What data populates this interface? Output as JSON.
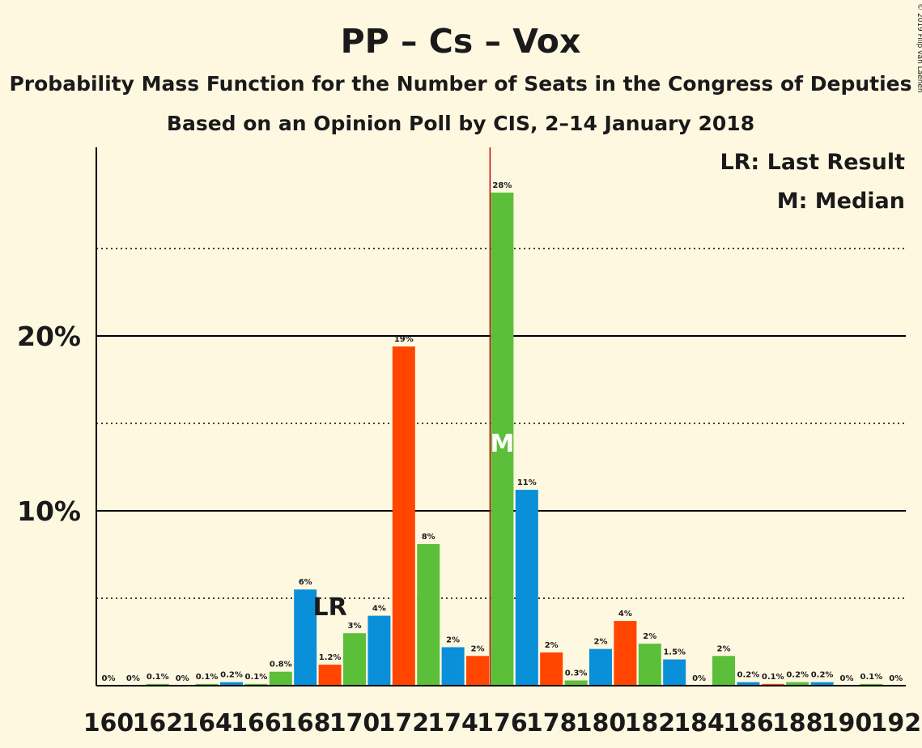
{
  "chart_data": {
    "type": "bar",
    "title": "PP – Cs – Vox",
    "subtitle": "Probability Mass Function for the Number of Seats in the Congress of Deputies",
    "subtitle2": "Based on an Opinion Poll by CIS, 2–14 January 2018",
    "copyright": "© 2019 Filip van Laenen",
    "legend": [
      "LR: Last Result",
      "M: Median"
    ],
    "legend_position": "top-right",
    "ylabel": "",
    "xlabel": "",
    "ylim": [
      0,
      30
    ],
    "grid": true,
    "y_ticks": [
      {
        "value": 10,
        "label": "10%"
      },
      {
        "value": 20,
        "label": "20%"
      }
    ],
    "dotted_gridlines": [
      5,
      15,
      25
    ],
    "x_tick_labels": [
      "160",
      "162",
      "164",
      "166",
      "168",
      "170",
      "172",
      "174",
      "176",
      "178",
      "180",
      "182",
      "184",
      "186",
      "188",
      "190",
      "192"
    ],
    "colors": {
      "blue": "#0a8fd9",
      "orange": "#ff4500",
      "green": "#5bbf3a",
      "median_line": "#c00000",
      "axis": "#000000"
    },
    "seats": [
      160,
      161,
      162,
      163,
      164,
      165,
      166,
      167,
      168,
      169,
      170,
      171,
      172,
      173,
      174,
      175,
      176,
      177,
      178,
      179,
      180,
      181,
      182,
      183,
      184,
      185,
      186,
      187,
      188,
      189,
      190,
      191,
      192
    ],
    "values": [
      0,
      0,
      0.1,
      0,
      0.1,
      0.2,
      0.1,
      0.8,
      5.5,
      1.2,
      3,
      4,
      19.4,
      8.1,
      2.2,
      1.7,
      28.2,
      11.2,
      1.9,
      0.3,
      2.1,
      3.7,
      2.4,
      1.5,
      0,
      1.7,
      0.2,
      0.1,
      0.2,
      0.2,
      0,
      0.1,
      0
    ],
    "labels": [
      "0%",
      "0%",
      "0.1%",
      "0%",
      "0.1%",
      "0.2%",
      "0.1%",
      "0.8%",
      "6%",
      "1.2%",
      "3%",
      "4%",
      "19%",
      "8%",
      "2%",
      "2%",
      "28%",
      "11%",
      "2%",
      "0.3%",
      "2%",
      "4%",
      "2%",
      "1.5%",
      "0%",
      "2%",
      "0.2%",
      "0.1%",
      "0.2%",
      "0.2%",
      "0%",
      "0.1%",
      "0%"
    ],
    "bar_colors": [
      "blue",
      "orange",
      "green",
      "blue",
      "green",
      "blue",
      "green",
      "green",
      "blue",
      "orange",
      "green",
      "blue",
      "orange",
      "green",
      "blue",
      "orange",
      "green",
      "blue",
      "orange",
      "green",
      "blue",
      "orange",
      "green",
      "blue",
      "orange",
      "green",
      "blue",
      "orange",
      "green",
      "blue",
      "orange",
      "green",
      "blue"
    ],
    "last_result_seat": 169,
    "last_result_label": "LR",
    "median_seat": 176,
    "median_label": "M"
  }
}
